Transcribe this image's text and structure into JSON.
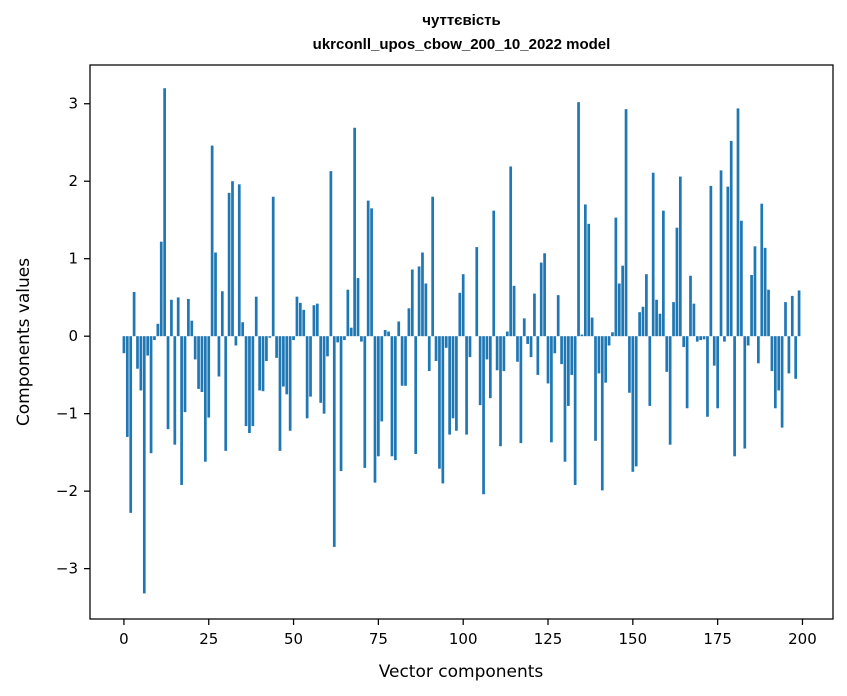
{
  "chart_data": {
    "type": "bar",
    "title": "чуттєвість",
    "subtitle": "ukrconll_upos_cbow_200_10_2022 model",
    "xlabel": "Vector components",
    "ylabel": "Components values",
    "xlim": [
      -10,
      209
    ],
    "ylim": [
      -3.65,
      3.5
    ],
    "xticks": [
      0,
      25,
      50,
      75,
      100,
      125,
      150,
      175,
      200
    ],
    "yticks": [
      -3,
      -2,
      -1,
      0,
      1,
      2,
      3
    ],
    "ytick_labels": [
      "−3",
      "−2",
      "−1",
      "0",
      "1",
      "2",
      "3"
    ],
    "grid": false,
    "bar_color": "#1f77b4",
    "x": [
      0,
      1,
      2,
      3,
      4,
      5,
      6,
      7,
      8,
      9,
      10,
      11,
      12,
      13,
      14,
      15,
      16,
      17,
      18,
      19,
      20,
      21,
      22,
      23,
      24,
      25,
      26,
      27,
      28,
      29,
      30,
      31,
      32,
      33,
      34,
      35,
      36,
      37,
      38,
      39,
      40,
      41,
      42,
      43,
      44,
      45,
      46,
      47,
      48,
      49,
      50,
      51,
      52,
      53,
      54,
      55,
      56,
      57,
      58,
      59,
      60,
      61,
      62,
      63,
      64,
      65,
      66,
      67,
      68,
      69,
      70,
      71,
      72,
      73,
      74,
      75,
      76,
      77,
      78,
      79,
      80,
      81,
      82,
      83,
      84,
      85,
      86,
      87,
      88,
      89,
      90,
      91,
      92,
      93,
      94,
      95,
      96,
      97,
      98,
      99,
      100,
      101,
      102,
      103,
      104,
      105,
      106,
      107,
      108,
      109,
      110,
      111,
      112,
      113,
      114,
      115,
      116,
      117,
      118,
      119,
      120,
      121,
      122,
      123,
      124,
      125,
      126,
      127,
      128,
      129,
      130,
      131,
      132,
      133,
      134,
      135,
      136,
      137,
      138,
      139,
      140,
      141,
      142,
      143,
      144,
      145,
      146,
      147,
      148,
      149,
      150,
      151,
      152,
      153,
      154,
      155,
      156,
      157,
      158,
      159,
      160,
      161,
      162,
      163,
      164,
      165,
      166,
      167,
      168,
      169,
      170,
      171,
      172,
      173,
      174,
      175,
      176,
      177,
      178,
      179,
      180,
      181,
      182,
      183,
      184,
      185,
      186,
      187,
      188,
      189,
      190,
      191,
      192,
      193,
      194,
      195,
      196,
      197,
      198,
      199
    ],
    "values": [
      -0.22,
      -1.3,
      -2.28,
      0.57,
      -0.42,
      -0.7,
      -3.32,
      -0.25,
      -1.51,
      -0.05,
      0.16,
      1.22,
      3.2,
      -1.2,
      0.47,
      -1.4,
      0.5,
      -1.92,
      -0.98,
      0.48,
      0.2,
      -0.3,
      -0.68,
      -0.72,
      -1.62,
      -1.05,
      2.46,
      1.08,
      -0.52,
      0.58,
      -1.48,
      1.85,
      2.0,
      -0.12,
      1.96,
      0.18,
      -1.16,
      -1.25,
      -1.16,
      0.51,
      -0.7,
      -0.71,
      -0.32,
      -0.02,
      1.8,
      -0.28,
      -1.48,
      -0.65,
      -0.75,
      -1.22,
      -0.05,
      0.51,
      0.43,
      0.34,
      -1.06,
      -0.78,
      0.4,
      0.42,
      -0.86,
      -1.0,
      -0.26,
      2.13,
      -2.72,
      -0.08,
      -1.74,
      -0.05,
      0.6,
      0.11,
      2.69,
      0.75,
      -0.07,
      -1.7,
      1.75,
      1.65,
      -1.89,
      -1.55,
      -1.1,
      0.08,
      0.06,
      -1.55,
      -1.6,
      0.19,
      -0.64,
      -0.64,
      0.36,
      0.86,
      -1.52,
      0.9,
      1.08,
      0.68,
      -0.45,
      1.8,
      -0.32,
      -1.71,
      -1.9,
      -0.15,
      -1.27,
      -1.06,
      -1.22,
      0.56,
      0.8,
      -1.27,
      -0.27,
      0.0,
      1.15,
      -0.89,
      -2.04,
      -0.3,
      -0.8,
      1.62,
      -0.44,
      -1.42,
      -0.45,
      0.06,
      2.19,
      0.65,
      -0.33,
      -1.38,
      0.23,
      -0.1,
      -0.27,
      0.55,
      -0.5,
      0.95,
      1.07,
      -0.61,
      -1.37,
      -0.22,
      0.53,
      -0.36,
      -1.62,
      -0.9,
      -0.5,
      -1.92,
      3.02,
      0.02,
      1.7,
      1.45,
      0.24,
      -1.35,
      -0.48,
      -1.99,
      -0.6,
      -0.12,
      0.05,
      1.53,
      0.68,
      0.91,
      2.93,
      -0.73,
      -1.75,
      -1.68,
      0.31,
      0.38,
      0.8,
      -0.9,
      2.11,
      0.47,
      0.29,
      1.62,
      -0.46,
      -1.4,
      0.44,
      1.4,
      2.06,
      -0.14,
      -0.93,
      0.78,
      0.42,
      -0.07,
      -0.05,
      -0.04,
      -1.04,
      1.94,
      -0.38,
      -0.93,
      2.14,
      -0.07,
      1.93,
      2.52,
      -1.55,
      2.94,
      1.49,
      -1.45,
      -0.12,
      0.79,
      1.16,
      -0.35,
      1.71,
      1.14,
      0.6,
      -0.45,
      -0.93,
      -0.7,
      -1.18,
      0.44,
      -0.48,
      0.52,
      -0.55,
      0.59
    ]
  }
}
